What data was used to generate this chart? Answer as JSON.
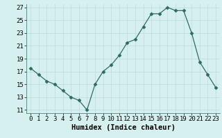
{
  "x": [
    0,
    1,
    2,
    3,
    4,
    5,
    6,
    7,
    8,
    9,
    10,
    11,
    12,
    13,
    14,
    15,
    16,
    17,
    18,
    19,
    20,
    21,
    22,
    23
  ],
  "y": [
    17.5,
    16.5,
    15.5,
    15.0,
    14.0,
    13.0,
    12.5,
    11.0,
    15.0,
    17.0,
    18.0,
    19.5,
    21.5,
    22.0,
    24.0,
    26.0,
    26.0,
    27.0,
    26.5,
    26.5,
    23.0,
    18.5,
    16.5,
    14.5
  ],
  "xlim": [
    -0.5,
    23.5
  ],
  "ylim": [
    10.5,
    27.5
  ],
  "yticks": [
    11,
    13,
    15,
    17,
    19,
    21,
    23,
    25,
    27
  ],
  "xticks": [
    0,
    1,
    2,
    3,
    4,
    5,
    6,
    7,
    8,
    9,
    10,
    11,
    12,
    13,
    14,
    15,
    16,
    17,
    18,
    19,
    20,
    21,
    22,
    23
  ],
  "xlabel": "Humidex (Indice chaleur)",
  "line_color": "#2e6b5e",
  "marker": "D",
  "marker_size": 2.5,
  "bg_color": "#d6f0f0",
  "grid_color": "#c0dede",
  "xlabel_fontsize": 7.5,
  "tick_fontsize": 6.5
}
